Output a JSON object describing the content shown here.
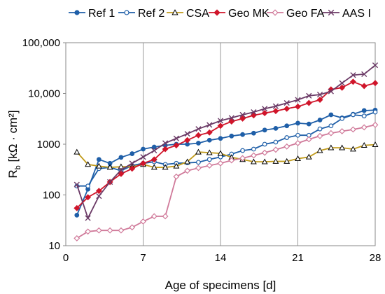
{
  "chart_data": {
    "type": "line",
    "xlabel": "Age of specimens [d]",
    "ylabel_main": "R",
    "ylabel_sub": "b",
    "ylabel_rest": " [kΩ · cm²]",
    "y_scale": "log",
    "xlim": [
      0,
      28
    ],
    "ylim": [
      10,
      100000
    ],
    "x_ticks": [
      0,
      7,
      14,
      21,
      28
    ],
    "y_ticks": [
      10,
      100,
      1000,
      10000,
      100000
    ],
    "y_tick_labels": [
      "10",
      "100",
      "1000",
      "10,000",
      "100,000"
    ],
    "grid": "vertical lines at x ticks",
    "legend_position": "top",
    "series": [
      {
        "name": "Ref 1",
        "color": "#1f5fa8",
        "marker": "filled-circle",
        "x": [
          1,
          2,
          3,
          4,
          5,
          6,
          7,
          8,
          9,
          10,
          11,
          12,
          13,
          14,
          15,
          16,
          17,
          18,
          19,
          20,
          21,
          22,
          23,
          24,
          25,
          26,
          27,
          28
        ],
        "y": [
          40,
          130,
          500,
          420,
          550,
          650,
          800,
          880,
          950,
          1000,
          1000,
          1050,
          1200,
          1300,
          1450,
          1550,
          1650,
          1900,
          2050,
          2300,
          2600,
          2500,
          3000,
          3800,
          3300,
          3900,
          4600,
          4700
        ]
      },
      {
        "name": "Ref 2",
        "color": "#1f5fa8",
        "marker": "open-circle",
        "x": [
          1,
          2,
          3,
          4,
          5,
          6,
          7,
          8,
          9,
          10,
          11,
          12,
          13,
          14,
          15,
          16,
          17,
          18,
          19,
          20,
          21,
          22,
          23,
          24,
          25,
          26,
          27,
          28
        ],
        "y": [
          150,
          150,
          330,
          350,
          300,
          380,
          420,
          450,
          400,
          420,
          430,
          440,
          500,
          560,
          640,
          750,
          800,
          1000,
          1100,
          1350,
          1500,
          1500,
          2000,
          2300,
          3200,
          3800,
          3600,
          4300
        ]
      },
      {
        "name": "CSA",
        "color": "#c09a1a",
        "marker": "open-triangle",
        "x": [
          1,
          2,
          3,
          4,
          5,
          6,
          7,
          8,
          9,
          10,
          11,
          12,
          13,
          14,
          15,
          16,
          17,
          18,
          19,
          20,
          21,
          22,
          23,
          24,
          25,
          26,
          27,
          28
        ],
        "y": [
          700,
          400,
          370,
          350,
          360,
          360,
          400,
          350,
          350,
          370,
          450,
          700,
          680,
          660,
          550,
          500,
          450,
          450,
          460,
          460,
          520,
          560,
          750,
          850,
          850,
          800,
          950,
          980
        ]
      },
      {
        "name": "Geo MK",
        "color": "#d0152a",
        "marker": "filled-diamond",
        "x": [
          1,
          2,
          3,
          4,
          5,
          6,
          7,
          8,
          9,
          10,
          11,
          12,
          13,
          14,
          15,
          16,
          17,
          18,
          19,
          20,
          21,
          22,
          23,
          24,
          25,
          26,
          27,
          28
        ],
        "y": [
          55,
          90,
          120,
          180,
          260,
          330,
          420,
          500,
          800,
          950,
          1200,
          1500,
          1700,
          2300,
          2800,
          3200,
          3700,
          4100,
          4500,
          5000,
          5500,
          6500,
          7500,
          12000,
          13000,
          17000,
          14000,
          16000
        ]
      },
      {
        "name": "Geo FA",
        "color": "#d07a9a",
        "marker": "open-diamond",
        "x": [
          1,
          2,
          3,
          4,
          5,
          6,
          7,
          8,
          9,
          10,
          11,
          12,
          13,
          14,
          15,
          16,
          17,
          18,
          19,
          20,
          21,
          22,
          23,
          24,
          25,
          26,
          27,
          28
        ],
        "y": [
          14,
          19,
          20,
          20,
          20,
          23,
          30,
          38,
          38,
          230,
          300,
          340,
          380,
          420,
          480,
          530,
          600,
          680,
          780,
          900,
          1050,
          1250,
          1450,
          1650,
          1800,
          1950,
          2150,
          2400
        ]
      },
      {
        "name": "AAS I",
        "color": "#6b3a66",
        "marker": "x",
        "x": [
          1,
          2,
          3,
          4,
          5,
          6,
          7,
          8,
          9,
          10,
          11,
          12,
          13,
          14,
          15,
          16,
          17,
          18,
          19,
          20,
          21,
          22,
          23,
          24,
          25,
          26,
          27,
          28
        ],
        "y": [
          160,
          35,
          95,
          180,
          310,
          420,
          560,
          750,
          1050,
          1300,
          1600,
          2000,
          2400,
          2900,
          3300,
          3800,
          4300,
          5000,
          5600,
          6500,
          7500,
          9000,
          9500,
          11000,
          16000,
          23000,
          24000,
          36000
        ]
      }
    ]
  }
}
